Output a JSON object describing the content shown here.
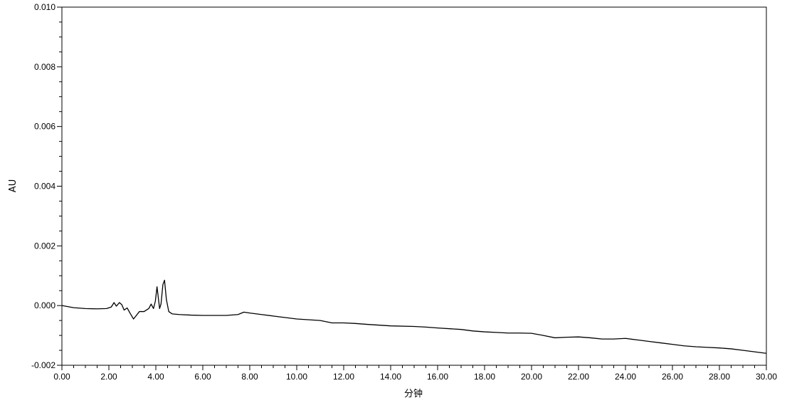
{
  "chart_data": {
    "type": "line",
    "xlabel": "分钟",
    "ylabel": "AU",
    "xlim": [
      0,
      30
    ],
    "ylim": [
      -0.002,
      0.01
    ],
    "x_ticks": [
      "0.00",
      "2.00",
      "4.00",
      "6.00",
      "8.00",
      "10.00",
      "12.00",
      "14.00",
      "16.00",
      "18.00",
      "20.00",
      "22.00",
      "24.00",
      "26.00",
      "28.00",
      "30.00"
    ],
    "y_ticks": [
      "-0.002",
      "0.000",
      "0.002",
      "0.004",
      "0.006",
      "0.008",
      "0.010"
    ],
    "grid": false,
    "line_color": "#000000",
    "series": [
      {
        "x": [
          0.0,
          0.5,
          1.0,
          1.5,
          1.9,
          2.1,
          2.22,
          2.32,
          2.45,
          2.55,
          2.65,
          2.78,
          2.9,
          3.05,
          3.15,
          3.3,
          3.5,
          3.7,
          3.8,
          3.9,
          3.98,
          4.05,
          4.1,
          4.16,
          4.22,
          4.3,
          4.37,
          4.45,
          4.55,
          4.7,
          5.0,
          5.5,
          6.0,
          7.0,
          7.5,
          7.75,
          8.0,
          8.5,
          9.0,
          10.0,
          11.0,
          11.5,
          12.0,
          12.5,
          13.0,
          14.0,
          15.0,
          15.5,
          16.0,
          17.0,
          17.5,
          18.0,
          18.5,
          19.0,
          19.5,
          20.0,
          20.5,
          21.0,
          21.5,
          22.0,
          22.5,
          23.0,
          23.5,
          24.0,
          24.5,
          25.0,
          25.5,
          26.0,
          26.5,
          27.0,
          27.5,
          28.0,
          28.5,
          29.0,
          29.5,
          30.0
        ],
        "y": [
          0.0,
          -7e-05,
          -0.0001,
          -0.00011,
          -0.0001,
          -5e-05,
          0.0001,
          -2e-05,
          0.0001,
          3e-05,
          -0.00015,
          -8e-05,
          -0.00025,
          -0.00045,
          -0.00035,
          -0.0002,
          -0.0002,
          -0.0001,
          5e-05,
          -0.0001,
          0.00015,
          0.00063,
          0.0003,
          -0.0001,
          5e-05,
          0.0007,
          0.00085,
          0.0002,
          -0.0002,
          -0.00028,
          -0.0003,
          -0.00032,
          -0.00033,
          -0.00033,
          -0.0003,
          -0.00022,
          -0.00025,
          -0.0003,
          -0.00035,
          -0.00045,
          -0.0005,
          -0.00058,
          -0.00058,
          -0.0006,
          -0.00063,
          -0.00068,
          -0.0007,
          -0.00072,
          -0.00075,
          -0.0008,
          -0.00085,
          -0.00088,
          -0.0009,
          -0.00092,
          -0.00092,
          -0.00093,
          -0.001,
          -0.00108,
          -0.00106,
          -0.00105,
          -0.00108,
          -0.00112,
          -0.00112,
          -0.0011,
          -0.00115,
          -0.0012,
          -0.00125,
          -0.0013,
          -0.00135,
          -0.00138,
          -0.0014,
          -0.00142,
          -0.00145,
          -0.0015,
          -0.00155,
          -0.0016
        ]
      }
    ]
  }
}
